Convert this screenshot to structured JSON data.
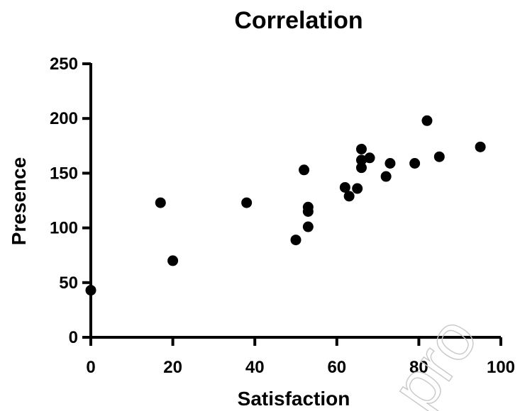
{
  "chart_data": {
    "type": "scatter",
    "title": "Correlation",
    "xlabel": "Satisfaction",
    "ylabel": "Presence",
    "xlim": [
      0,
      100
    ],
    "ylim": [
      0,
      250
    ],
    "xticks": [
      "0",
      "20",
      "40",
      "60",
      "80",
      "100"
    ],
    "yticks": [
      "0",
      "50",
      "100",
      "150",
      "200",
      "250"
    ],
    "grid": false,
    "marker_color": "#000000",
    "points": [
      {
        "x": 0,
        "y": 43
      },
      {
        "x": 17,
        "y": 123
      },
      {
        "x": 20,
        "y": 70
      },
      {
        "x": 38,
        "y": 123
      },
      {
        "x": 50,
        "y": 89
      },
      {
        "x": 52,
        "y": 153
      },
      {
        "x": 53,
        "y": 119
      },
      {
        "x": 53,
        "y": 115
      },
      {
        "x": 53,
        "y": 101
      },
      {
        "x": 62,
        "y": 137
      },
      {
        "x": 63,
        "y": 129
      },
      {
        "x": 65,
        "y": 136
      },
      {
        "x": 66,
        "y": 172
      },
      {
        "x": 66,
        "y": 162
      },
      {
        "x": 66,
        "y": 155
      },
      {
        "x": 68,
        "y": 164
      },
      {
        "x": 72,
        "y": 147
      },
      {
        "x": 73,
        "y": 159
      },
      {
        "x": 79,
        "y": 159
      },
      {
        "x": 82,
        "y": 198
      },
      {
        "x": 85,
        "y": 165
      },
      {
        "x": 95,
        "y": 174
      }
    ]
  },
  "watermark": {
    "text": "pro"
  }
}
